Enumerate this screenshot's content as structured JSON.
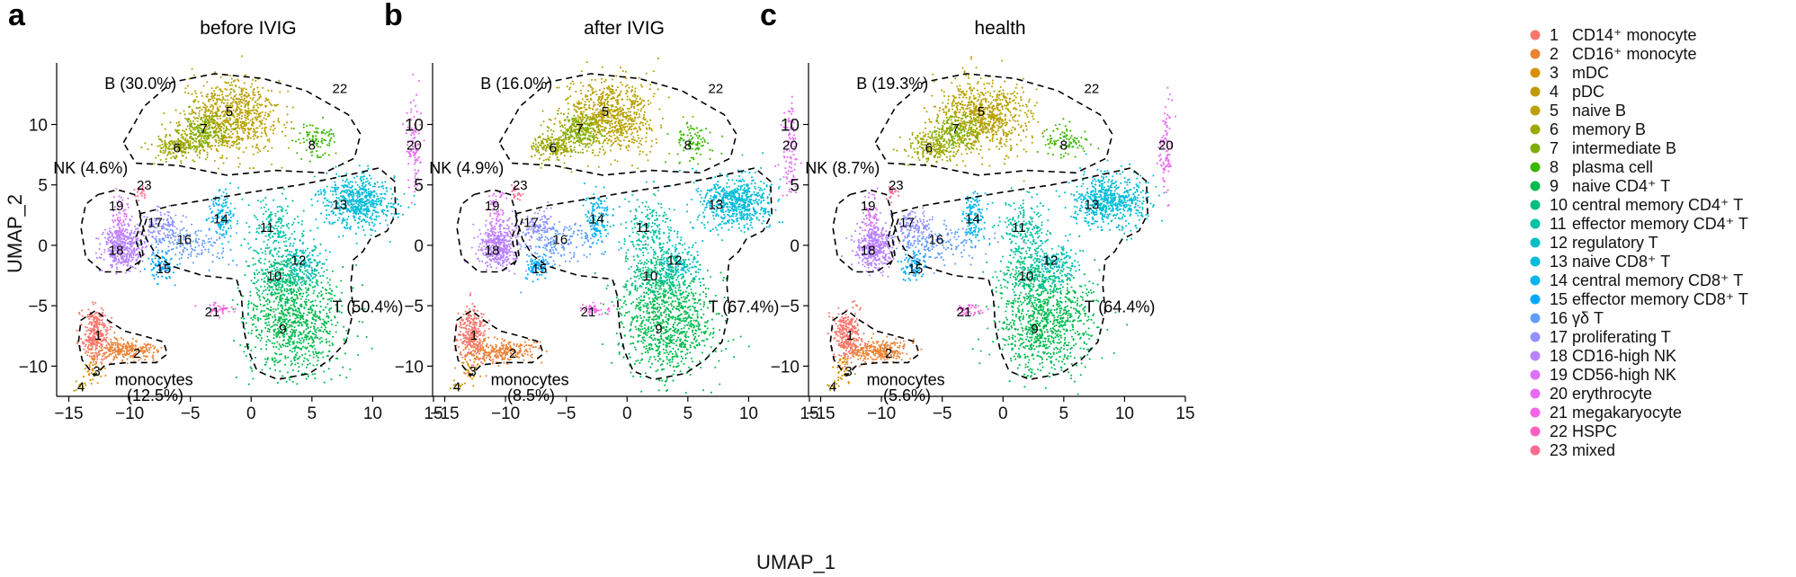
{
  "chart_data": {
    "type": "scatter",
    "xlabel": "UMAP_1",
    "ylabel": "UMAP_2",
    "xlim": [
      -16,
      15
    ],
    "ylim": [
      -12.5,
      14.5
    ],
    "xticks": [
      -15,
      -10,
      -5,
      0,
      5,
      10,
      15
    ],
    "yticks": [
      -10,
      -5,
      0,
      5,
      10
    ],
    "xtick_labels": [
      "−15",
      "−10",
      "−5",
      "0",
      "5",
      "10",
      "15"
    ],
    "ytick_labels": [
      "−10",
      "−5",
      "0",
      "5",
      "10"
    ],
    "legend": [
      {
        "id": 1,
        "number": "1",
        "name": "CD14⁺ monocyte",
        "color": "#F8766D"
      },
      {
        "id": 2,
        "number": "2",
        "name": "CD16⁺ monocyte",
        "color": "#EB8335"
      },
      {
        "id": 3,
        "number": "3",
        "name": "mDC",
        "color": "#D89000"
      },
      {
        "id": 4,
        "number": "4",
        "name": "pDC",
        "color": "#C09B00"
      },
      {
        "id": 5,
        "number": "5",
        "name": "naive B",
        "color": "#B8A100"
      },
      {
        "id": 6,
        "number": "6",
        "name": "memory B",
        "color": "#9DA700"
      },
      {
        "id": 7,
        "number": "7",
        "name": "intermediate B",
        "color": "#7CAE00"
      },
      {
        "id": 8,
        "number": "8",
        "name": "plasma cell",
        "color": "#39B600"
      },
      {
        "id": 9,
        "number": "9",
        "name": "naive CD4⁺ T",
        "color": "#00BB4E"
      },
      {
        "id": 10,
        "number": "10",
        "name": "central memory CD4⁺ T",
        "color": "#00BF7D"
      },
      {
        "id": 11,
        "number": "11",
        "name": "effector memory CD4⁺ T",
        "color": "#00C1A3"
      },
      {
        "id": 12,
        "number": "12",
        "name": "regulatory T",
        "color": "#00BFC4"
      },
      {
        "id": 13,
        "number": "13",
        "name": "naive CD8⁺ T",
        "color": "#00BCD8"
      },
      {
        "id": 14,
        "number": "14",
        "name": "central memory CD8⁺ T",
        "color": "#00B4EF"
      },
      {
        "id": 15,
        "number": "15",
        "name": "effector memory CD8⁺ T",
        "color": "#00A9FF"
      },
      {
        "id": 16,
        "number": "16",
        "name": "γδ T",
        "color": "#619CFF"
      },
      {
        "id": 17,
        "number": "17",
        "name": "proliferating T",
        "color": "#9590FF"
      },
      {
        "id": 18,
        "number": "18",
        "name": "CD16-high NK",
        "color": "#B983FF"
      },
      {
        "id": 19,
        "number": "19",
        "name": "CD56-high NK",
        "color": "#DB72FB"
      },
      {
        "id": 20,
        "number": "20",
        "name": "erythrocyte",
        "color": "#E76BF3"
      },
      {
        "id": 21,
        "number": "21",
        "name": "megakaryocyte",
        "color": "#F564E3"
      },
      {
        "id": 22,
        "number": "22",
        "name": "HSPC",
        "color": "#FF61C3"
      },
      {
        "id": 23,
        "number": "23",
        "name": "mixed",
        "color": "#FF6C91"
      }
    ],
    "clusters": [
      {
        "id": 1,
        "x": -12.8,
        "y": -7.4,
        "sx": 0.55,
        "sy": 1.05,
        "n": 300
      },
      {
        "id": 2,
        "x": -10.3,
        "y": -8.7,
        "sx": 1.3,
        "sy": 0.45,
        "n": 260
      },
      {
        "id": 3,
        "x": -13.0,
        "y": -10.2,
        "sx": 0.4,
        "sy": 0.6,
        "n": 40
      },
      {
        "id": 4,
        "x": -14.0,
        "y": -11.6,
        "sx": 0.3,
        "sy": 0.25,
        "n": 14
      },
      {
        "id": 5,
        "x": -1.5,
        "y": 10.6,
        "sx": 1.8,
        "sy": 1.5,
        "n": 800
      },
      {
        "id": 6,
        "x": -6.0,
        "y": 8.2,
        "sx": 1.0,
        "sy": 0.6,
        "n": 200
      },
      {
        "id": 7,
        "x": -3.8,
        "y": 9.5,
        "sx": 1.0,
        "sy": 0.8,
        "n": 200
      },
      {
        "id": 8,
        "x": 5.3,
        "y": 8.6,
        "sx": 0.9,
        "sy": 0.7,
        "n": 90
      },
      {
        "id": 9,
        "x": 3.5,
        "y": -6.3,
        "sx": 2.0,
        "sy": 2.2,
        "n": 900
      },
      {
        "id": 10,
        "x": 2.5,
        "y": -2.5,
        "sx": 1.3,
        "sy": 1.0,
        "n": 250
      },
      {
        "id": 11,
        "x": 1.8,
        "y": 1.2,
        "sx": 1.1,
        "sy": 1.3,
        "n": 200
      },
      {
        "id": 12,
        "x": 4.3,
        "y": -1.5,
        "sx": 0.9,
        "sy": 0.9,
        "n": 150
      },
      {
        "id": 13,
        "x": 8.8,
        "y": 3.6,
        "sx": 1.5,
        "sy": 1.1,
        "n": 600
      },
      {
        "id": 14,
        "x": -2.4,
        "y": 2.3,
        "sx": 0.5,
        "sy": 1.1,
        "n": 130
      },
      {
        "id": 15,
        "x": -7.3,
        "y": -1.7,
        "sx": 0.5,
        "sy": 0.6,
        "n": 90
      },
      {
        "id": 16,
        "x": -5.5,
        "y": 0.2,
        "sx": 1.8,
        "sy": 0.9,
        "n": 170
      },
      {
        "id": 17,
        "x": -7.4,
        "y": 1.6,
        "sx": 0.7,
        "sy": 0.7,
        "n": 100
      },
      {
        "id": 18,
        "x": -10.6,
        "y": -0.1,
        "sx": 0.8,
        "sy": 0.9,
        "n": 420
      },
      {
        "id": 19,
        "x": -10.8,
        "y": 2.6,
        "sx": 0.35,
        "sy": 1.0,
        "n": 60
      },
      {
        "id": 20,
        "x": 13.4,
        "y": 8.0,
        "sx": 0.3,
        "sy": 1.9,
        "n": 100
      },
      {
        "id": 21,
        "x": -2.7,
        "y": -5.3,
        "sx": 0.6,
        "sy": 0.25,
        "n": 45
      },
      {
        "id": 22,
        "x": 7.0,
        "y": 12.3,
        "sx": 0.4,
        "sy": 0.4,
        "n": 0
      },
      {
        "id": 23,
        "x": -9.1,
        "y": 4.4,
        "sx": 0.25,
        "sy": 0.3,
        "n": 25
      }
    ],
    "panels": [
      {
        "letter": "a",
        "title": "before IVIG",
        "groups": [
          {
            "name": "B",
            "label": "B (30.0%)",
            "x": -9.1,
            "y": 13.3
          },
          {
            "name": "NK",
            "label": "NK (4.6%)",
            "x": -13.2,
            "y": 6.3
          },
          {
            "name": "T",
            "label": "T (50.4%)",
            "x": 9.6,
            "y": -5.2
          },
          {
            "name": "monocytes",
            "label": "monocytes",
            "x": -8.0,
            "y": -11.2
          },
          {
            "name": "monocytes",
            "label": "(12.5%)",
            "x": -7.9,
            "y": -12.5
          }
        ]
      },
      {
        "letter": "b",
        "title": "after IVIG",
        "groups": [
          {
            "name": "B",
            "label": "B (16.0%)",
            "x": -9.1,
            "y": 13.3
          },
          {
            "name": "NK",
            "label": "NK (4.9%)",
            "x": -13.2,
            "y": 6.3
          },
          {
            "name": "T",
            "label": "T (67.4%)",
            "x": 9.6,
            "y": -5.2
          },
          {
            "name": "monocytes",
            "label": "monocytes",
            "x": -8.0,
            "y": -11.2
          },
          {
            "name": "monocytes",
            "label": "(8.5%)",
            "x": -7.9,
            "y": -12.5
          }
        ]
      },
      {
        "letter": "c",
        "title": "health",
        "groups": [
          {
            "name": "B",
            "label": "B (19.3%)",
            "x": -9.1,
            "y": 13.3
          },
          {
            "name": "NK",
            "label": "NK (8.7%)",
            "x": -13.2,
            "y": 6.3
          },
          {
            "name": "T",
            "label": "T (64.4%)",
            "x": 9.6,
            "y": -5.2
          },
          {
            "name": "monocytes",
            "label": "monocytes",
            "x": -8.0,
            "y": -11.2
          },
          {
            "name": "monocytes",
            "label": "(5.6%)",
            "x": -7.9,
            "y": -12.5
          }
        ]
      }
    ],
    "outlines": [
      {
        "group": "B",
        "points": [
          [
            -10.5,
            8.5
          ],
          [
            -8.8,
            11.5
          ],
          [
            -6.5,
            13.5
          ],
          [
            -3,
            14.2
          ],
          [
            1,
            13.8
          ],
          [
            4.5,
            12.8
          ],
          [
            8,
            10.8
          ],
          [
            9,
            9.2
          ],
          [
            8.5,
            7.2
          ],
          [
            6,
            6.0
          ],
          [
            2,
            6.2
          ],
          [
            -2,
            5.8
          ],
          [
            -6,
            6.6
          ],
          [
            -9.5,
            6.8
          ],
          [
            -10.5,
            8.5
          ]
        ]
      },
      {
        "group": "NK",
        "points": [
          [
            -12.6,
            4.2
          ],
          [
            -11,
            4.6
          ],
          [
            -9.6,
            4.2
          ],
          [
            -9.0,
            2.2
          ],
          [
            -9.5,
            0.5
          ],
          [
            -9.0,
            -1.2
          ],
          [
            -10.4,
            -2.2
          ],
          [
            -12.2,
            -2.2
          ],
          [
            -13.6,
            -1.0
          ],
          [
            -14.0,
            1.5
          ],
          [
            -13.6,
            3.4
          ],
          [
            -12.6,
            4.2
          ]
        ]
      },
      {
        "group": "T",
        "points": [
          [
            -9.2,
            2.6
          ],
          [
            -6.5,
            3.3
          ],
          [
            -3.5,
            3.8
          ],
          [
            0,
            4.4
          ],
          [
            4,
            5.0
          ],
          [
            6.5,
            5.5
          ],
          [
            8.8,
            6.0
          ],
          [
            10.5,
            6.4
          ],
          [
            11.8,
            5.3
          ],
          [
            11.9,
            2.6
          ],
          [
            11.2,
            1.2
          ],
          [
            9.8,
            0.5
          ],
          [
            9.2,
            -0.5
          ],
          [
            8.4,
            -1.2
          ],
          [
            8.2,
            -3.2
          ],
          [
            8.4,
            -5.5
          ],
          [
            7.8,
            -8.0
          ],
          [
            6.4,
            -9.5
          ],
          [
            4.8,
            -10.6
          ],
          [
            2.2,
            -11.1
          ],
          [
            0.5,
            -10.4
          ],
          [
            -0.2,
            -8.8
          ],
          [
            -0.6,
            -7.0
          ],
          [
            -0.8,
            -4.2
          ],
          [
            -1.2,
            -2.8
          ],
          [
            -4.0,
            -2.5
          ],
          [
            -6.6,
            -1.7
          ],
          [
            -7.8,
            -0.8
          ],
          [
            -8.6,
            0.5
          ],
          [
            -9.2,
            2.6
          ]
        ]
      },
      {
        "group": "monocytes",
        "points": [
          [
            -14.2,
            -8.0
          ],
          [
            -14.0,
            -6.2
          ],
          [
            -12.8,
            -5.4
          ],
          [
            -11.8,
            -6.2
          ],
          [
            -10.4,
            -7.1
          ],
          [
            -8.5,
            -7.6
          ],
          [
            -7.2,
            -8.0
          ],
          [
            -6.9,
            -9.0
          ],
          [
            -7.8,
            -9.7
          ],
          [
            -10.2,
            -9.7
          ],
          [
            -12.0,
            -9.9
          ],
          [
            -12.9,
            -10.8
          ],
          [
            -13.9,
            -9.5
          ],
          [
            -14.2,
            -8.0
          ]
        ]
      },
      {
        "group": "NK-T-divider",
        "points": [
          [
            -8.6,
            2.2
          ],
          [
            -9.1,
            0.6
          ],
          [
            -8.9,
            -0.8
          ],
          [
            -9.3,
            -1.6
          ]
        ]
      }
    ],
    "cluster_labels": [
      {
        "text": "1",
        "x": -12.6,
        "y": -7.5
      },
      {
        "text": "2",
        "x": -9.4,
        "y": -9.0
      },
      {
        "text": "3",
        "x": -12.7,
        "y": -10.5
      },
      {
        "text": "4",
        "x": -14.0,
        "y": -11.8
      },
      {
        "text": "5",
        "x": -1.8,
        "y": 11.0
      },
      {
        "text": "6",
        "x": -6.1,
        "y": 8.0
      },
      {
        "text": "7",
        "x": -3.9,
        "y": 9.6
      },
      {
        "text": "8",
        "x": 5.0,
        "y": 8.2
      },
      {
        "text": "9",
        "x": 2.6,
        "y": -7.0
      },
      {
        "text": "10",
        "x": 1.9,
        "y": -2.6
      },
      {
        "text": "11",
        "x": 1.3,
        "y": 1.4
      },
      {
        "text": "12",
        "x": 3.9,
        "y": -1.3
      },
      {
        "text": "13",
        "x": 7.3,
        "y": 3.3
      },
      {
        "text": "14",
        "x": -2.5,
        "y": 2.1
      },
      {
        "text": "15",
        "x": -7.2,
        "y": -2.0
      },
      {
        "text": "16",
        "x": -5.5,
        "y": 0.4
      },
      {
        "text": "17",
        "x": -7.9,
        "y": 1.8
      },
      {
        "text": "18",
        "x": -11.1,
        "y": -0.5
      },
      {
        "text": "19",
        "x": -11.1,
        "y": 3.2
      },
      {
        "text": "20",
        "x": 13.4,
        "y": 8.2
      },
      {
        "text": "21",
        "x": -3.2,
        "y": -5.6
      },
      {
        "text": "22",
        "x": 7.3,
        "y": 12.9
      },
      {
        "text": "23",
        "x": -8.8,
        "y": 4.9
      }
    ]
  }
}
